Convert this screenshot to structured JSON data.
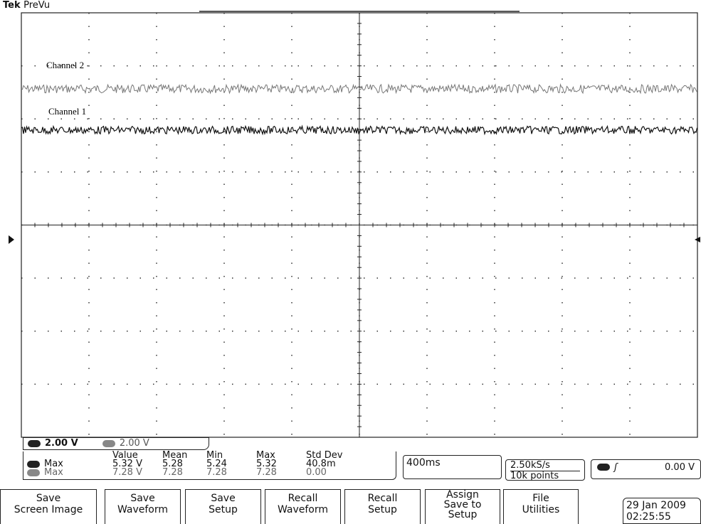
{
  "header": {
    "brand": "Tek",
    "mode": "PreVu"
  },
  "traces": [
    {
      "label": "Channel 2"
    },
    {
      "label": "Channel 1"
    }
  ],
  "scales": [
    "2.00 V",
    "2.00 V"
  ],
  "measurements": {
    "columns": [
      "Value",
      "Mean",
      "Min",
      "Max",
      "Std Dev"
    ],
    "rows": [
      {
        "label": "Max",
        "cells": [
          "5.32 V",
          "5.28",
          "5.24",
          "5.32",
          "40.8m"
        ]
      },
      {
        "label": "Max",
        "cells": [
          "7.28 V",
          "7.28",
          "7.28",
          "7.28",
          "0.00"
        ]
      }
    ]
  },
  "timebase": "400ms",
  "acquisition": {
    "sample_rate": "2.50kS/s",
    "record_length": "10k points"
  },
  "trigger": {
    "level": "0.00 V"
  },
  "buttons": [
    {
      "lines": [
        "Save",
        "Screen Image"
      ]
    },
    {
      "lines": [
        "Save",
        "Waveform"
      ]
    },
    {
      "lines": [
        "Save",
        "Setup"
      ]
    },
    {
      "lines": [
        "Recall",
        "Waveform"
      ]
    },
    {
      "lines": [
        "Recall",
        "Setup"
      ]
    },
    {
      "lines": [
        "Assign",
        "Save to",
        "Setup"
      ]
    },
    {
      "lines": [
        "File",
        "Utilities"
      ]
    }
  ],
  "datetime": {
    "date": "29 Jan 2009",
    "time": "02:25:55"
  }
}
